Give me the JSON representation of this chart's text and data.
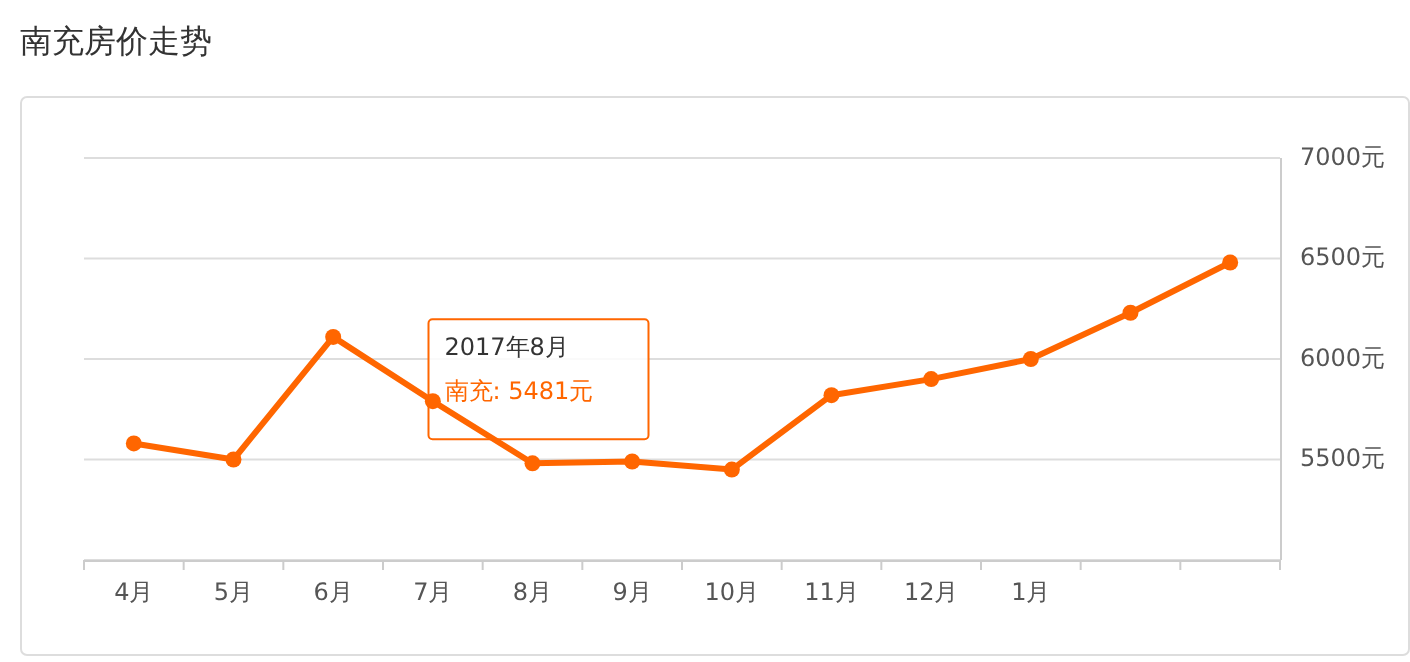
{
  "chart_data": {
    "type": "line",
    "title": "南充房价走势",
    "categories": [
      "4月",
      "5月",
      "6月",
      "7月",
      "8月",
      "9月",
      "10月",
      "11月",
      "12月",
      "1月",
      null,
      null
    ],
    "series": [
      {
        "color": "#ff6600",
        "values": [
          5580,
          5500,
          6110,
          5790,
          5481,
          5490,
          5450,
          5820,
          5900,
          6000,
          6230,
          6480
        ]
      }
    ],
    "ylim": [
      5000,
      7000
    ],
    "yticks": [
      {
        "value": 5000,
        "label": null
      },
      {
        "value": 5500,
        "label": "5500元"
      },
      {
        "value": 6000,
        "label": "6000元"
      },
      {
        "value": 6500,
        "label": "6500元"
      },
      {
        "value": 7000,
        "label": "7000元"
      }
    ],
    "grid": "y",
    "marker": "circle",
    "line_style": "solid",
    "annotations": [
      "2017年8月",
      "南充:  5481元"
    ]
  }
}
